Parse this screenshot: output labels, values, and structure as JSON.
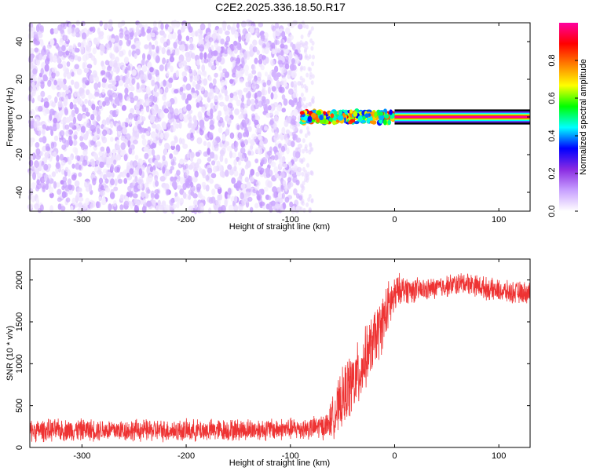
{
  "title": "C2E2.2025.336.18.50.R17",
  "chart_data": [
    {
      "type": "heatmap",
      "xlabel": "Height of straight line (km)",
      "ylabel": "Frequency (Hz)",
      "xlim": [
        -350,
        130
      ],
      "ylim": [
        -50,
        50
      ],
      "xticks": [
        -300,
        -200,
        -100,
        0,
        100
      ],
      "yticks": [
        -40,
        -20,
        0,
        20,
        40
      ],
      "colorbar": {
        "label": "Normalized spectral amplitude",
        "range": [
          0,
          1
        ],
        "ticks": [
          0.0,
          0.2,
          0.4,
          0.6,
          0.8
        ],
        "colors": [
          "#ffffff",
          "#c8a0ff",
          "#8a2be2",
          "#0000ff",
          "#00ffff",
          "#00ff00",
          "#ffff00",
          "#ff8000",
          "#ff0000",
          "#ff00a0"
        ]
      },
      "regions": [
        {
          "x": [
            -350,
            -90
          ],
          "description_values": {
            "freq_range": [
              -50,
              50
            ],
            "amplitude": [
              0.0,
              0.15
            ]
          }
        },
        {
          "x": [
            -90,
            0
          ],
          "description_values": {
            "freq_center": 0,
            "freq_halfwidth": 3,
            "amplitude": [
              0.3,
              0.9
            ]
          }
        },
        {
          "x": [
            0,
            130
          ],
          "description_values": {
            "freq_center": 0,
            "freq_halfwidth": 1,
            "amplitude": 1.0
          }
        }
      ]
    },
    {
      "type": "line",
      "xlabel": "Height of straight line (km)",
      "ylabel": "SNR (10 * v/v)",
      "xlim": [
        -350,
        130
      ],
      "ylim": [
        0,
        2250
      ],
      "xticks": [
        -300,
        -200,
        -100,
        0,
        100
      ],
      "yticks": [
        0,
        500,
        1000,
        1500,
        2000
      ],
      "color": "#ee3333",
      "series": [
        {
          "x": [
            -350,
            -300,
            -250,
            -200,
            -150,
            -100,
            -80,
            -65,
            -55,
            -45,
            -35,
            -25,
            -15,
            -5,
            5,
            15,
            30,
            50,
            70,
            90,
            110,
            130
          ],
          "y": [
            200,
            210,
            205,
            200,
            210,
            220,
            230,
            260,
            450,
            700,
            850,
            1150,
            1400,
            1700,
            1900,
            1880,
            1880,
            1930,
            1970,
            1890,
            1850,
            1850
          ],
          "noise_amplitude": [
            150,
            150,
            150,
            150,
            150,
            150,
            150,
            180,
            350,
            450,
            450,
            400,
            400,
            350,
            200,
            180,
            150,
            150,
            150,
            150,
            150,
            150
          ]
        }
      ]
    }
  ]
}
